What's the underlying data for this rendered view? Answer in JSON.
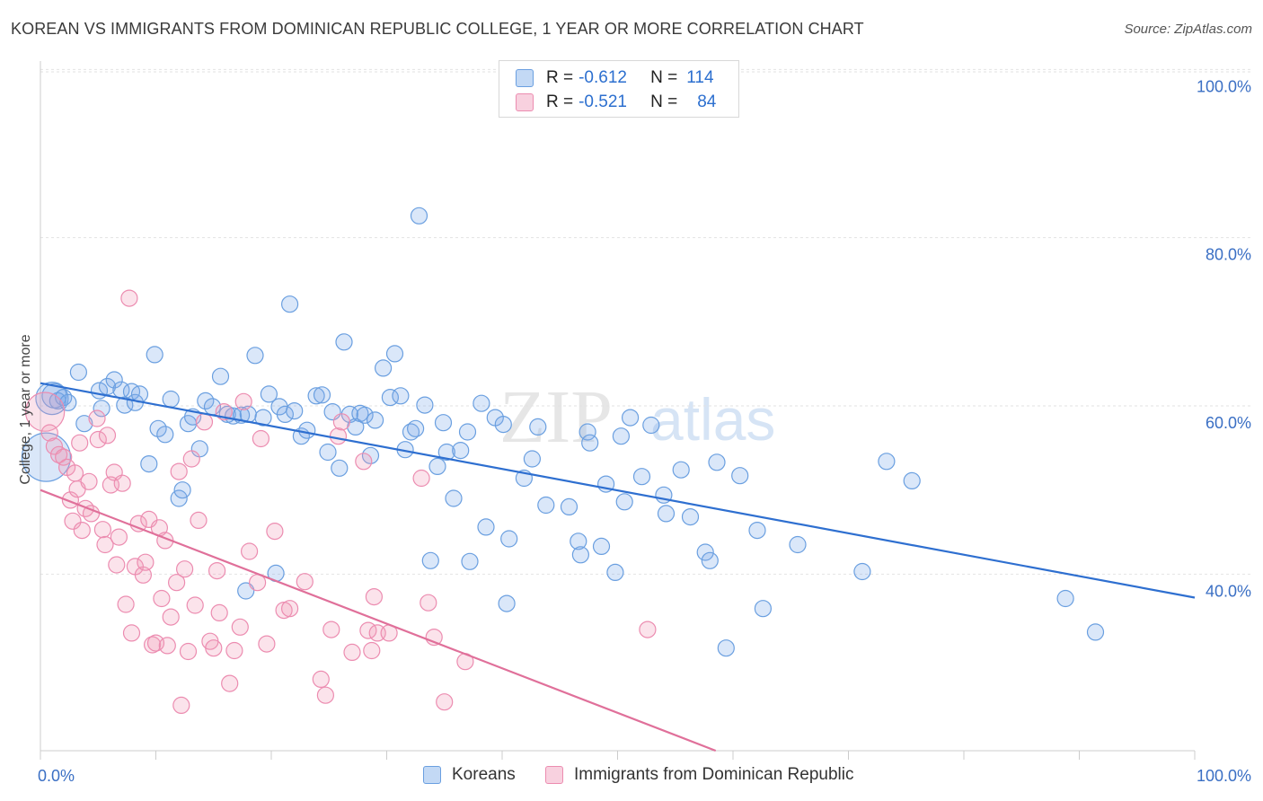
{
  "header": {
    "title": "KOREAN VS IMMIGRANTS FROM DOMINICAN REPUBLIC COLLEGE, 1 YEAR OR MORE CORRELATION CHART",
    "source": "Source: ZipAtlas.com"
  },
  "watermark": {
    "zip": "ZIP",
    "atlas": "atlas"
  },
  "legend": {
    "r_label": "R =",
    "n_label": "N =",
    "rows": [
      {
        "r": "-0.612",
        "n": "114",
        "color": "#7aaae8"
      },
      {
        "r": "-0.521",
        "n": "84",
        "color": "#f09ab8"
      }
    ]
  },
  "colors": {
    "blue_fill": "rgba(122,170,232,0.28)",
    "blue_stroke": "#6a9fe0",
    "blue_line": "#2e6fd0",
    "pink_fill": "rgba(240,154,184,0.28)",
    "pink_stroke": "#ec8cb0",
    "pink_line": "#e0709a",
    "axis_text": "#3a6fc4"
  },
  "chart_data": {
    "type": "scatter",
    "title": "KOREAN VS IMMIGRANTS FROM DOMINICAN REPUBLIC COLLEGE, 1 YEAR OR MORE CORRELATION CHART",
    "xlabel": "",
    "ylabel": "College, 1 year or more",
    "xlim": [
      0,
      100
    ],
    "ylim": [
      19,
      101
    ],
    "x_tick_labels": [
      "0.0%",
      "100.0%"
    ],
    "y_ticks": [
      {
        "value": 40,
        "label": "40.0%"
      },
      {
        "value": 60,
        "label": "60.0%"
      },
      {
        "value": 80,
        "label": "80.0%"
      },
      {
        "value": 100,
        "label": "100.0%"
      }
    ],
    "grid": "horizontal-dashed",
    "legend_position": "top-center",
    "series": [
      {
        "name": "Koreans",
        "r": -0.612,
        "n": 114,
        "trend": {
          "x": [
            0,
            100
          ],
          "y": [
            62.7,
            37.2
          ]
        },
        "points": [
          [
            0.5,
            53.9,
            3
          ],
          [
            1.0,
            60.9,
            2
          ],
          [
            1.2,
            61.2,
            1.5
          ],
          [
            1.5,
            60.6,
            1
          ],
          [
            2.0,
            61.0,
            1
          ],
          [
            2.4,
            60.4,
            1
          ],
          [
            3.3,
            64.0,
            1
          ],
          [
            3.8,
            57.9,
            1
          ],
          [
            5.1,
            61.8,
            1
          ],
          [
            5.3,
            59.7,
            1
          ],
          [
            5.8,
            62.3,
            1
          ],
          [
            6.4,
            63.1,
            1
          ],
          [
            7.0,
            61.9,
            1
          ],
          [
            7.3,
            60.1,
            1
          ],
          [
            7.9,
            61.7,
            1
          ],
          [
            8.2,
            60.4,
            1
          ],
          [
            8.6,
            61.4,
            1
          ],
          [
            9.4,
            53.1,
            1
          ],
          [
            9.9,
            66.1,
            1
          ],
          [
            10.2,
            57.3,
            1
          ],
          [
            10.8,
            56.6,
            1
          ],
          [
            11.3,
            60.8,
            1
          ],
          [
            12.0,
            49.0,
            1
          ],
          [
            12.3,
            50.0,
            1
          ],
          [
            12.8,
            57.9,
            1
          ],
          [
            13.2,
            58.7,
            1
          ],
          [
            13.8,
            54.9,
            1
          ],
          [
            14.3,
            60.6,
            1
          ],
          [
            14.9,
            59.9,
            1
          ],
          [
            15.6,
            63.5,
            1
          ],
          [
            16.2,
            59.0,
            1
          ],
          [
            16.7,
            58.8,
            1
          ],
          [
            17.4,
            58.9,
            1
          ],
          [
            17.8,
            38.0,
            1
          ],
          [
            18.0,
            59.0,
            1
          ],
          [
            18.6,
            66.0,
            1
          ],
          [
            19.3,
            58.6,
            1
          ],
          [
            19.8,
            61.4,
            1
          ],
          [
            20.4,
            40.1,
            1
          ],
          [
            20.7,
            59.9,
            1
          ],
          [
            21.2,
            59.0,
            1
          ],
          [
            21.6,
            72.1,
            1
          ],
          [
            22.0,
            59.4,
            1
          ],
          [
            22.6,
            56.4,
            1
          ],
          [
            23.1,
            57.1,
            1
          ],
          [
            23.9,
            61.2,
            1
          ],
          [
            24.4,
            61.3,
            1
          ],
          [
            24.9,
            54.5,
            1
          ],
          [
            25.3,
            59.3,
            1
          ],
          [
            25.9,
            52.6,
            1
          ],
          [
            26.3,
            67.6,
            1
          ],
          [
            26.8,
            59.0,
            1
          ],
          [
            27.3,
            57.5,
            1
          ],
          [
            27.7,
            59.1,
            1
          ],
          [
            28.1,
            58.9,
            1
          ],
          [
            28.6,
            54.1,
            1
          ],
          [
            29.0,
            58.3,
            1
          ],
          [
            29.7,
            64.5,
            1
          ],
          [
            30.3,
            61.0,
            1
          ],
          [
            30.7,
            66.2,
            1
          ],
          [
            31.2,
            61.2,
            1
          ],
          [
            31.6,
            54.8,
            1
          ],
          [
            32.1,
            56.9,
            1
          ],
          [
            32.5,
            57.3,
            1
          ],
          [
            32.8,
            82.6,
            1
          ],
          [
            33.3,
            60.1,
            1
          ],
          [
            33.8,
            41.6,
            1
          ],
          [
            34.4,
            52.8,
            1
          ],
          [
            34.9,
            58.0,
            1
          ],
          [
            35.2,
            54.5,
            1
          ],
          [
            35.8,
            49.0,
            1
          ],
          [
            36.4,
            54.7,
            1
          ],
          [
            37.0,
            56.9,
            1
          ],
          [
            37.2,
            41.5,
            1
          ],
          [
            38.2,
            60.3,
            1
          ],
          [
            38.6,
            45.6,
            1
          ],
          [
            39.4,
            58.6,
            1
          ],
          [
            40.1,
            57.8,
            1
          ],
          [
            40.6,
            44.2,
            1
          ],
          [
            40.4,
            36.5,
            1
          ],
          [
            41.9,
            51.4,
            1
          ],
          [
            42.6,
            53.7,
            1
          ],
          [
            43.1,
            57.5,
            1
          ],
          [
            43.8,
            48.2,
            1
          ],
          [
            45.8,
            48.0,
            1
          ],
          [
            46.6,
            43.9,
            1
          ],
          [
            46.8,
            42.3,
            1
          ],
          [
            47.4,
            56.9,
            1
          ],
          [
            47.6,
            55.6,
            1
          ],
          [
            48.6,
            43.3,
            1
          ],
          [
            49.0,
            50.7,
            1
          ],
          [
            49.8,
            40.2,
            1
          ],
          [
            50.3,
            56.4,
            1
          ],
          [
            50.6,
            48.6,
            1
          ],
          [
            51.1,
            58.6,
            1
          ],
          [
            52.1,
            51.6,
            1
          ],
          [
            52.9,
            57.7,
            1
          ],
          [
            54.0,
            49.4,
            1
          ],
          [
            54.2,
            47.2,
            1
          ],
          [
            55.5,
            52.4,
            1
          ],
          [
            56.3,
            46.8,
            1
          ],
          [
            57.6,
            42.6,
            1
          ],
          [
            58.0,
            41.6,
            1
          ],
          [
            58.6,
            53.3,
            1
          ],
          [
            59.4,
            31.2,
            1
          ],
          [
            60.6,
            51.7,
            1
          ],
          [
            62.1,
            45.2,
            1
          ],
          [
            62.6,
            35.9,
            1
          ],
          [
            65.6,
            43.5,
            1
          ],
          [
            71.2,
            40.3,
            1
          ],
          [
            73.3,
            53.4,
            1
          ],
          [
            75.5,
            51.1,
            1
          ],
          [
            88.8,
            37.1,
            1
          ],
          [
            91.4,
            33.1,
            1
          ]
        ]
      },
      {
        "name": "Immigrants from Dominican Republic",
        "r": -0.521,
        "n": 84,
        "trend": {
          "x": [
            0,
            58.5
          ],
          "y": [
            50.0,
            19.0
          ]
        },
        "points": [
          [
            0.4,
            59.3,
            2.4
          ],
          [
            0.8,
            56.8,
            1
          ],
          [
            1.2,
            55.2,
            1
          ],
          [
            1.6,
            54.2,
            1
          ],
          [
            2.0,
            53.9,
            1
          ],
          [
            2.3,
            52.7,
            1
          ],
          [
            2.6,
            48.8,
            1
          ],
          [
            2.8,
            46.3,
            1
          ],
          [
            3.0,
            52.0,
            1
          ],
          [
            3.2,
            50.1,
            1
          ],
          [
            3.4,
            55.6,
            1
          ],
          [
            3.6,
            45.2,
            1
          ],
          [
            3.9,
            47.8,
            1
          ],
          [
            4.2,
            51.0,
            1
          ],
          [
            4.4,
            47.2,
            1
          ],
          [
            4.9,
            58.5,
            1
          ],
          [
            5.0,
            56.0,
            1
          ],
          [
            5.4,
            45.3,
            1
          ],
          [
            5.6,
            43.5,
            1
          ],
          [
            5.8,
            56.5,
            1
          ],
          [
            6.1,
            50.6,
            1
          ],
          [
            6.4,
            52.1,
            1
          ],
          [
            6.6,
            41.1,
            1
          ],
          [
            6.8,
            44.4,
            1
          ],
          [
            7.1,
            50.8,
            1
          ],
          [
            7.4,
            36.4,
            1
          ],
          [
            7.7,
            72.8,
            1
          ],
          [
            7.9,
            33.0,
            1
          ],
          [
            8.2,
            40.9,
            1
          ],
          [
            8.5,
            46.0,
            1
          ],
          [
            8.9,
            39.9,
            1
          ],
          [
            9.1,
            41.4,
            1
          ],
          [
            9.4,
            46.5,
            1
          ],
          [
            9.7,
            31.6,
            1
          ],
          [
            10.0,
            31.8,
            1
          ],
          [
            10.3,
            45.5,
            1
          ],
          [
            10.5,
            37.1,
            1
          ],
          [
            10.8,
            44.0,
            1
          ],
          [
            11.0,
            31.5,
            1
          ],
          [
            11.3,
            34.9,
            1
          ],
          [
            11.8,
            39.0,
            1
          ],
          [
            12.0,
            52.2,
            1
          ],
          [
            12.2,
            24.4,
            1
          ],
          [
            12.5,
            40.6,
            1
          ],
          [
            12.8,
            30.8,
            1
          ],
          [
            13.1,
            53.7,
            1
          ],
          [
            13.4,
            36.3,
            1
          ],
          [
            13.7,
            46.4,
            1
          ],
          [
            14.2,
            58.1,
            1
          ],
          [
            14.7,
            32.0,
            1
          ],
          [
            15.0,
            31.2,
            1
          ],
          [
            15.3,
            40.4,
            1
          ],
          [
            15.5,
            35.4,
            1
          ],
          [
            15.9,
            59.3,
            1
          ],
          [
            16.4,
            27.0,
            1
          ],
          [
            16.8,
            30.9,
            1
          ],
          [
            17.3,
            33.7,
            1
          ],
          [
            17.6,
            60.5,
            1
          ],
          [
            18.1,
            42.7,
            1
          ],
          [
            18.8,
            39.0,
            1
          ],
          [
            19.1,
            56.1,
            1
          ],
          [
            19.6,
            31.7,
            1
          ],
          [
            20.3,
            45.1,
            1
          ],
          [
            21.1,
            35.7,
            1
          ],
          [
            21.6,
            35.9,
            1
          ],
          [
            22.9,
            39.1,
            1
          ],
          [
            24.3,
            27.5,
            1
          ],
          [
            24.7,
            25.6,
            1
          ],
          [
            25.2,
            33.4,
            1
          ],
          [
            25.8,
            56.4,
            1
          ],
          [
            26.1,
            58.1,
            1
          ],
          [
            27.0,
            30.7,
            1
          ],
          [
            28.0,
            53.4,
            1
          ],
          [
            28.4,
            33.3,
            1
          ],
          [
            28.7,
            30.9,
            1
          ],
          [
            28.9,
            37.3,
            1
          ],
          [
            29.2,
            33.0,
            1
          ],
          [
            30.2,
            33.0,
            1
          ],
          [
            33.0,
            51.4,
            1
          ],
          [
            33.6,
            36.6,
            1
          ],
          [
            34.1,
            32.5,
            1
          ],
          [
            35.0,
            24.8,
            1
          ],
          [
            36.8,
            29.6,
            1
          ],
          [
            52.6,
            33.4,
            1
          ]
        ]
      }
    ]
  },
  "bottom_legend": [
    {
      "label": "Koreans"
    },
    {
      "label": "Immigrants from Dominican Republic"
    }
  ]
}
